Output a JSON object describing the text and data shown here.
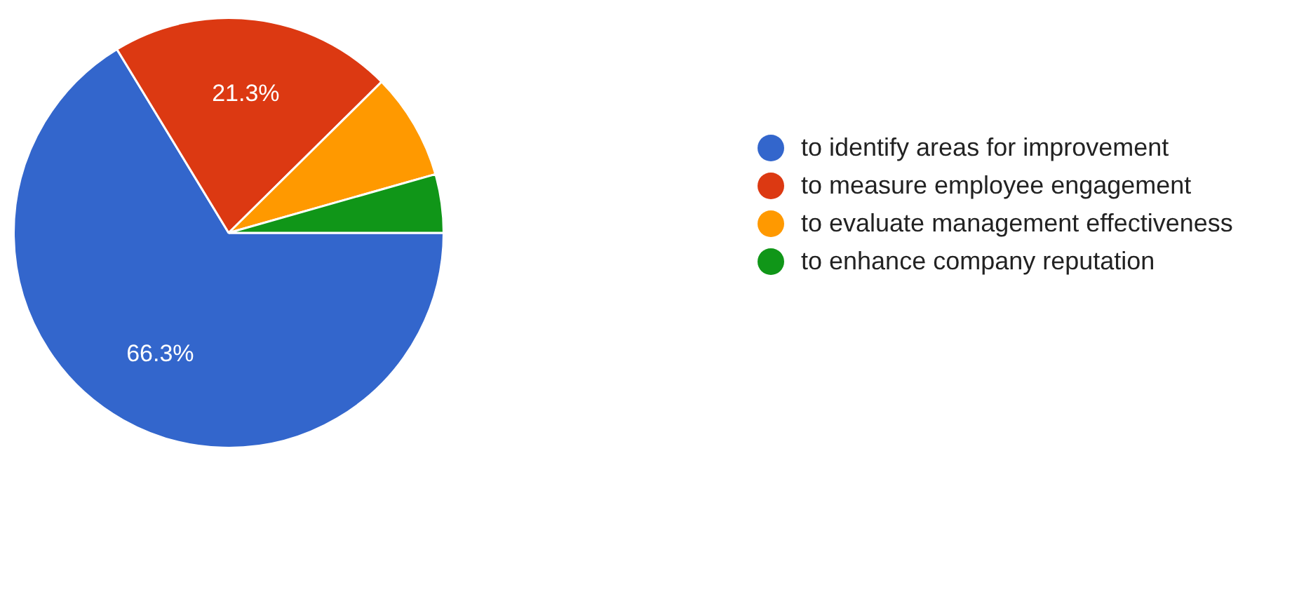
{
  "chart_data": {
    "type": "pie",
    "categories": [
      "to identify areas for improvement",
      "to measure employee engagement",
      "to evaluate management effectiveness",
      "to enhance company reputation"
    ],
    "values": [
      66.3,
      21.3,
      8.0,
      4.4
    ],
    "colors": [
      "#3366cc",
      "#dc3912",
      "#ff9900",
      "#109618"
    ],
    "value_labels": [
      "66.3%",
      "21.3%",
      null,
      null
    ],
    "legend": "top right"
  }
}
